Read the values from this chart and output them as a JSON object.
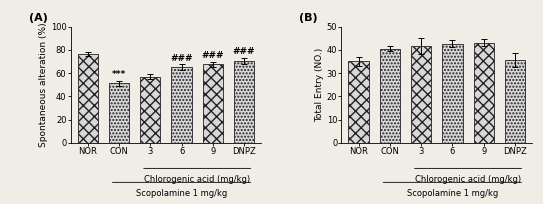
{
  "panel_A": {
    "title": "(A)",
    "ylabel": "Spontaneous alteration (%)",
    "categories": [
      "NOR",
      "CON",
      "3",
      "6",
      "9",
      "DNPZ"
    ],
    "values": [
      76.5,
      51.0,
      57.0,
      65.0,
      67.5,
      70.5
    ],
    "errors": [
      1.5,
      2.5,
      2.0,
      2.5,
      2.0,
      2.5
    ],
    "ylim": [
      0,
      100
    ],
    "yticks": [
      0,
      20,
      40,
      60,
      80,
      100
    ],
    "significance": {
      "CON": "***",
      "6": "###",
      "9": "###",
      "DNPZ": "###"
    },
    "xlabel_group1": "Chlorogenic acid (mg/kg)",
    "xlabel_group2": "Scopolamine 1 mg/kg"
  },
  "panel_B": {
    "title": "(B)",
    "ylabel": "Total Entry (NO.)",
    "categories": [
      "NOR",
      "CON",
      "3",
      "6",
      "9",
      "DNPZ"
    ],
    "values": [
      35.0,
      40.5,
      41.5,
      42.5,
      43.0,
      35.5
    ],
    "errors": [
      2.0,
      1.0,
      3.5,
      1.5,
      1.5,
      3.0
    ],
    "ylim": [
      0,
      50
    ],
    "yticks": [
      0,
      10,
      20,
      30,
      40,
      50
    ],
    "xlabel_group1": "Chlorogenic acid (mg/kg)",
    "xlabel_group2": "Scopolamine 1 mg/kg"
  },
  "hatch_A": [
    "xxx",
    ".....",
    "xxx",
    ".....",
    "xxx",
    "....."
  ],
  "hatch_B": [
    "xxx",
    ".....",
    "xxx",
    ".....",
    "xxx",
    "....."
  ],
  "bar_color": "#d8d8d8",
  "bar_edge_color": "#222222",
  "background_color": "#f0ece6",
  "fontsize_label": 6.5,
  "fontsize_tick": 6,
  "fontsize_sig": 6.5,
  "fontsize_title": 8,
  "fontsize_xlabel": 6
}
